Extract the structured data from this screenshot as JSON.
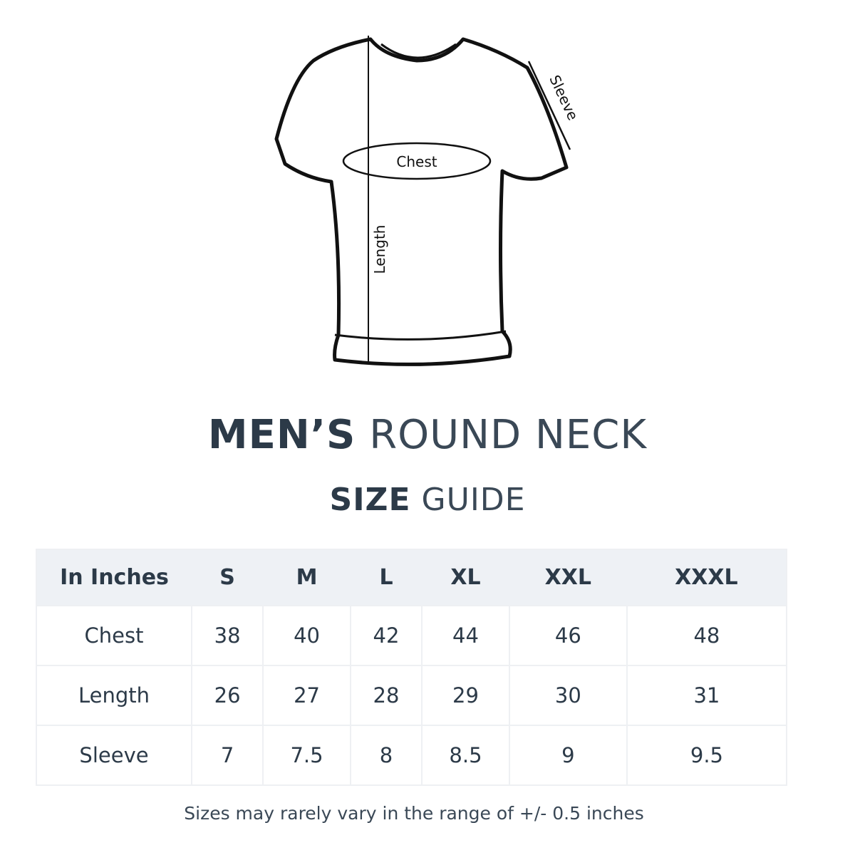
{
  "diagram": {
    "chest_label": "Chest",
    "length_label": "Length",
    "sleeve_label": "Sleeve"
  },
  "title": {
    "line1_bold": "MEN’S",
    "line1_light": "ROUND NECK",
    "line2_bold": "SIZE",
    "line2_light": "GUIDE"
  },
  "table": {
    "headers": [
      "In Inches",
      "S",
      "M",
      "L",
      "XL",
      "XXL",
      "XXXL"
    ],
    "rows": [
      {
        "label": "Chest",
        "values": [
          "38",
          "40",
          "42",
          "44",
          "46",
          "48"
        ]
      },
      {
        "label": "Length",
        "values": [
          "26",
          "27",
          "28",
          "29",
          "30",
          "31"
        ]
      },
      {
        "label": "Sleeve",
        "values": [
          "7",
          "7.5",
          "8",
          "8.5",
          "9",
          "9.5"
        ]
      }
    ]
  },
  "note": "Sizes may rarely vary in the range of +/- 0.5 inches",
  "colors": {
    "text": "#2c3a48",
    "header_bg": "#eef1f5"
  }
}
